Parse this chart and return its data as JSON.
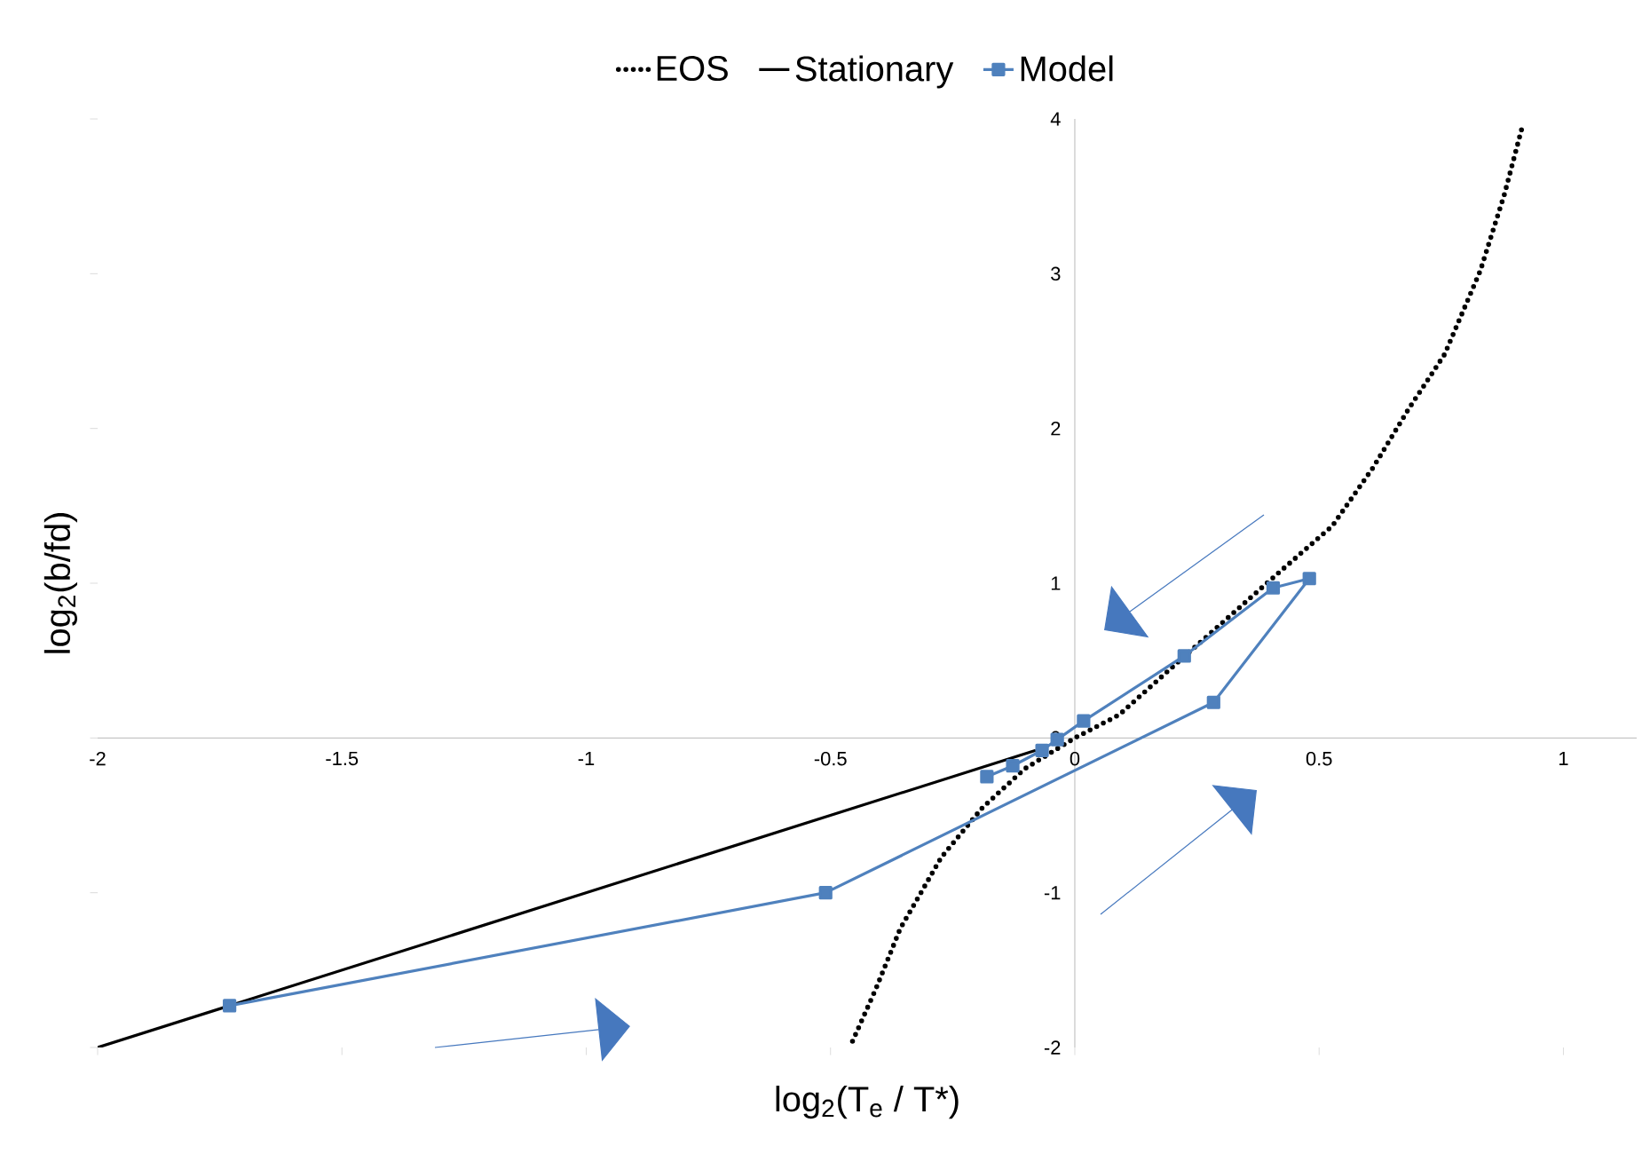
{
  "chart_data": {
    "type": "line",
    "xlabel": "log$_{2}$(T$_{e}$ / T*)",
    "ylabel": "log$_{2}$(b/fd)",
    "xlim": [
      -2,
      1.15
    ],
    "ylim": [
      -2,
      4
    ],
    "xticks": [
      -2,
      -1.5,
      -1,
      -0.5,
      0,
      0.5,
      1
    ],
    "yticks": [
      -2,
      -1,
      0,
      1,
      2,
      3,
      4
    ],
    "legend": "top",
    "series": [
      {
        "name": "EOS",
        "color": "#000000",
        "line_style": "dotted",
        "x": [
          -0.455,
          -0.407,
          -0.357,
          -0.273,
          -0.189,
          -0.103,
          0,
          0.091,
          0.211,
          0.418,
          0.527,
          0.611,
          0.684,
          0.757,
          0.83,
          0.879,
          0.915
        ],
        "values": [
          -1.96,
          -1.62,
          -1.23,
          -0.77,
          -0.45,
          -0.2,
          0,
          0.15,
          0.49,
          1.07,
          1.37,
          1.75,
          2.13,
          2.48,
          3.02,
          3.51,
          3.94
        ]
      },
      {
        "name": "Stationary",
        "color": "#000000",
        "x": [
          -2,
          -0.08
        ],
        "values": [
          -2,
          -0.08
        ]
      },
      {
        "name": "Model",
        "color": "#4f81bd",
        "marker": "square",
        "x": [
          -1.73,
          -0.51,
          0.284,
          0.48,
          0.406,
          0.224,
          0.018,
          -0.036,
          -0.067,
          -0.127,
          -0.18
        ],
        "values": [
          -1.73,
          -1.0,
          0.23,
          1.03,
          0.97,
          0.53,
          0.11,
          -0.01,
          -0.08,
          -0.18,
          -0.25
        ]
      }
    ]
  }
}
